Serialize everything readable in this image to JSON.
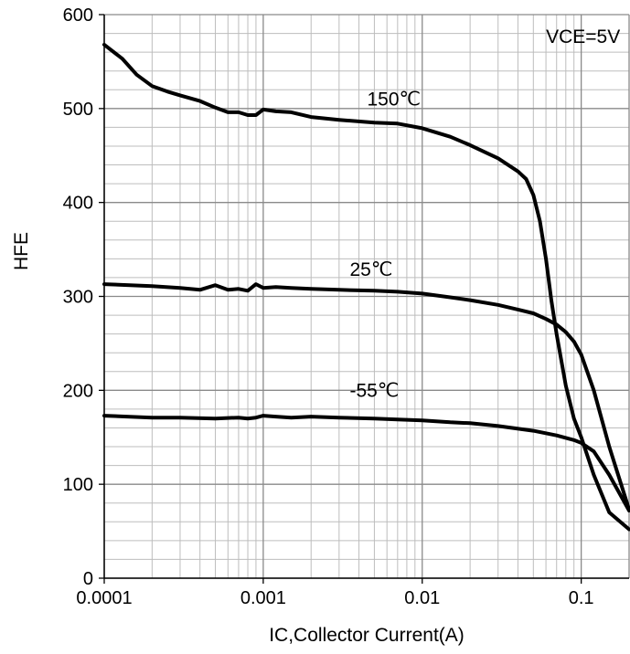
{
  "chart_data": {
    "type": "line",
    "title": "",
    "xlabel": "IC,Collector Current(A)",
    "ylabel": "HFE",
    "x_scale": "log",
    "xlim": [
      0.0001,
      0.2
    ],
    "ylim": [
      0,
      600
    ],
    "grid": true,
    "x_ticks": [
      {
        "value": 0.0001,
        "label": "0.0001"
      },
      {
        "value": 0.001,
        "label": "0.001"
      },
      {
        "value": 0.01,
        "label": "0.01"
      },
      {
        "value": 0.1,
        "label": "0.1"
      }
    ],
    "y_ticks": [
      {
        "value": 0,
        "label": "0"
      },
      {
        "value": 100,
        "label": "100"
      },
      {
        "value": 200,
        "label": "200"
      },
      {
        "value": 300,
        "label": "300"
      },
      {
        "value": 400,
        "label": "400"
      },
      {
        "value": 500,
        "label": "500"
      },
      {
        "value": 600,
        "label": "600"
      }
    ],
    "annotations": [
      {
        "text": "VCE=5V",
        "x": 0.06,
        "y": 570
      },
      {
        "text": "150℃",
        "x": 0.0045,
        "y": 503
      },
      {
        "text": "25℃",
        "x": 0.0035,
        "y": 322
      },
      {
        "text": "-55℃",
        "x": 0.0035,
        "y": 193
      }
    ],
    "series": [
      {
        "name": "150℃",
        "x": [
          0.0001,
          0.00013,
          0.00016,
          0.0002,
          0.00025,
          0.0003,
          0.0004,
          0.0005,
          0.0006,
          0.0007,
          0.0008,
          0.0009,
          0.001,
          0.0012,
          0.0015,
          0.002,
          0.003,
          0.005,
          0.007,
          0.01,
          0.015,
          0.02,
          0.03,
          0.04,
          0.045,
          0.05,
          0.055,
          0.06,
          0.065,
          0.07,
          0.08,
          0.09,
          0.1,
          0.12,
          0.15,
          0.2
        ],
        "y": [
          568,
          553,
          536,
          524,
          518,
          514,
          508,
          501,
          496,
          496,
          493,
          493,
          499,
          497,
          496,
          491,
          488,
          485,
          484,
          479,
          470,
          461,
          447,
          433,
          425,
          408,
          380,
          340,
          295,
          260,
          205,
          170,
          150,
          110,
          70,
          52
        ]
      },
      {
        "name": "25℃",
        "x": [
          0.0001,
          0.0002,
          0.0003,
          0.0004,
          0.0005,
          0.0006,
          0.0007,
          0.0008,
          0.0009,
          0.001,
          0.0012,
          0.0015,
          0.002,
          0.003,
          0.005,
          0.007,
          0.01,
          0.015,
          0.02,
          0.03,
          0.04,
          0.05,
          0.06,
          0.07,
          0.08,
          0.09,
          0.1,
          0.12,
          0.15,
          0.2
        ],
        "y": [
          313,
          311,
          309,
          307,
          312,
          307,
          308,
          306,
          313,
          309,
          310,
          309,
          308,
          307,
          306,
          305,
          303,
          299,
          296,
          291,
          286,
          282,
          276,
          270,
          262,
          252,
          238,
          200,
          140,
          73
        ]
      },
      {
        "name": "-55℃",
        "x": [
          0.0001,
          0.0002,
          0.0003,
          0.0005,
          0.0007,
          0.0008,
          0.0009,
          0.001,
          0.0012,
          0.0015,
          0.002,
          0.003,
          0.005,
          0.007,
          0.01,
          0.015,
          0.02,
          0.03,
          0.05,
          0.07,
          0.09,
          0.1,
          0.12,
          0.15,
          0.2
        ],
        "y": [
          173,
          171,
          171,
          170,
          171,
          170,
          171,
          173,
          172,
          171,
          172,
          171,
          170,
          169,
          168,
          166,
          165,
          162,
          157,
          152,
          147,
          144,
          135,
          110,
          72
        ]
      }
    ]
  }
}
